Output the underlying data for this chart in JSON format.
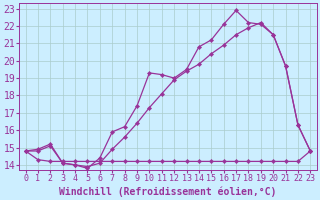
{
  "xlabel": "Windchill (Refroidissement éolien,°C)",
  "bg_color": "#cceeff",
  "line_color": "#993399",
  "grid_color": "#aacccc",
  "xlim": [
    -0.5,
    23.5
  ],
  "ylim": [
    13.7,
    23.3
  ],
  "xticks": [
    0,
    1,
    2,
    3,
    4,
    5,
    6,
    7,
    8,
    9,
    10,
    11,
    12,
    13,
    14,
    15,
    16,
    17,
    18,
    19,
    20,
    21,
    22,
    23
  ],
  "yticks": [
    14,
    15,
    16,
    17,
    18,
    19,
    20,
    21,
    22,
    23
  ],
  "line1_x": [
    0,
    1,
    2,
    3,
    4,
    5,
    6,
    7,
    8,
    9,
    10,
    11,
    12,
    13,
    14,
    15,
    16,
    17,
    18,
    19,
    20,
    21,
    22,
    23
  ],
  "line1_y": [
    14.8,
    14.3,
    14.2,
    14.2,
    14.2,
    14.2,
    14.2,
    14.2,
    14.2,
    14.2,
    14.2,
    14.2,
    14.2,
    14.2,
    14.2,
    14.2,
    14.2,
    14.2,
    14.2,
    14.2,
    14.2,
    14.2,
    14.2,
    14.8
  ],
  "line2_x": [
    0,
    1,
    2,
    3,
    4,
    5,
    6,
    7,
    8,
    9,
    10,
    11,
    12,
    13,
    14,
    15,
    16,
    17,
    18,
    19,
    20,
    21,
    22,
    23
  ],
  "line2_y": [
    14.8,
    14.8,
    15.1,
    14.1,
    14.0,
    13.9,
    14.1,
    14.9,
    15.6,
    16.4,
    17.3,
    18.1,
    18.9,
    19.4,
    19.8,
    20.4,
    20.9,
    21.5,
    21.9,
    22.2,
    21.5,
    19.7,
    16.3,
    14.8
  ],
  "line3_x": [
    0,
    1,
    2,
    3,
    4,
    5,
    6,
    7,
    8,
    9,
    10,
    11,
    12,
    13,
    14,
    15,
    16,
    17,
    18,
    19,
    20,
    21,
    22,
    23
  ],
  "line3_y": [
    14.8,
    14.9,
    15.2,
    14.1,
    14.0,
    13.8,
    14.4,
    15.9,
    16.2,
    17.4,
    19.3,
    19.2,
    19.0,
    19.5,
    20.8,
    21.2,
    22.1,
    22.9,
    22.2,
    22.1,
    21.5,
    19.7,
    16.3,
    14.8
  ],
  "fontsize_xlabel": 7,
  "fontsize_yticks": 7,
  "fontsize_xticks": 6
}
